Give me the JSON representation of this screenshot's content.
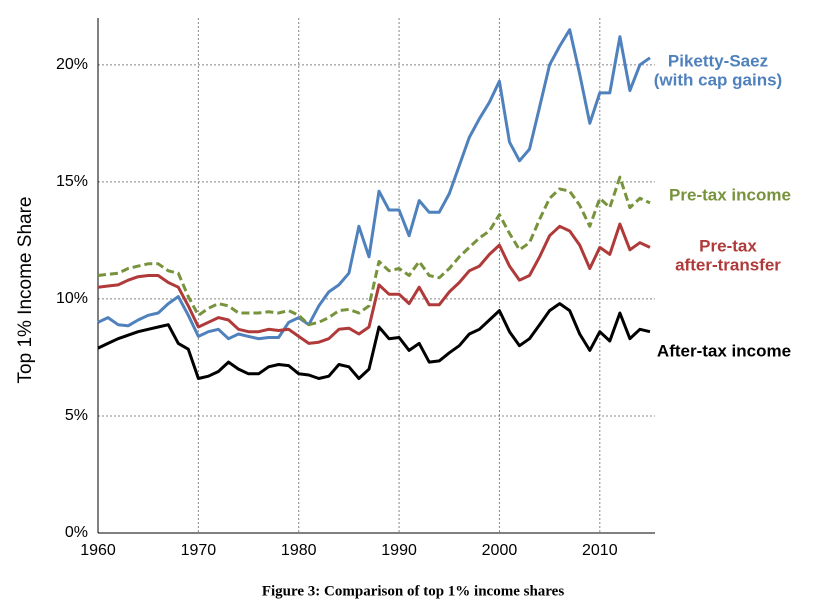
{
  "chart_data": {
    "type": "line",
    "ylabel": "Top 1% Income Share",
    "caption": "Figure 3: Comparison of top 1% income shares",
    "x": [
      1960,
      1961,
      1962,
      1963,
      1964,
      1965,
      1966,
      1967,
      1968,
      1969,
      1970,
      1971,
      1972,
      1973,
      1974,
      1975,
      1976,
      1977,
      1978,
      1979,
      1980,
      1981,
      1982,
      1983,
      1984,
      1985,
      1986,
      1987,
      1988,
      1989,
      1990,
      1991,
      1992,
      1993,
      1994,
      1995,
      1996,
      1997,
      1998,
      1999,
      2000,
      2001,
      2002,
      2003,
      2004,
      2005,
      2006,
      2007,
      2008,
      2009,
      2010,
      2011,
      2012,
      2013,
      2014,
      2015
    ],
    "xlim": [
      1960,
      2015.5
    ],
    "xticks": [
      1960,
      1970,
      1980,
      1990,
      2000,
      2010
    ],
    "ylim": [
      0,
      22
    ],
    "yticks": [
      {
        "value": 0,
        "label": "0%"
      },
      {
        "value": 5,
        "label": "5%"
      },
      {
        "value": 10,
        "label": "10%"
      },
      {
        "value": 15,
        "label": "15%"
      },
      {
        "value": 20,
        "label": "20%"
      }
    ],
    "grid": true,
    "series": [
      {
        "name": [
          "Piketty-Saez",
          "(with cap gains)"
        ],
        "color": "#4f81bd",
        "dashed": false,
        "values": [
          9.0,
          9.2,
          8.9,
          8.85,
          9.1,
          9.3,
          9.4,
          9.8,
          10.1,
          9.3,
          8.4,
          8.6,
          8.7,
          8.3,
          8.5,
          8.4,
          8.3,
          8.35,
          8.35,
          9.0,
          9.2,
          8.9,
          9.7,
          10.3,
          10.6,
          11.1,
          13.1,
          11.8,
          14.6,
          13.8,
          13.8,
          12.7,
          14.2,
          13.7,
          13.7,
          14.5,
          15.7,
          16.9,
          17.7,
          18.4,
          19.3,
          16.7,
          15.9,
          16.4,
          18.2,
          20.0,
          20.8,
          21.5,
          19.6,
          17.5,
          18.8,
          18.8,
          21.2,
          18.9,
          20.0,
          20.3
        ]
      },
      {
        "name": [
          "Pre-tax income"
        ],
        "color": "#77933c",
        "dashed": true,
        "values": [
          11.0,
          11.05,
          11.1,
          11.3,
          11.4,
          11.5,
          11.5,
          11.2,
          11.1,
          10.1,
          9.3,
          9.6,
          9.8,
          9.7,
          9.4,
          9.4,
          9.4,
          9.45,
          9.4,
          9.5,
          9.3,
          8.9,
          9.0,
          9.2,
          9.5,
          9.55,
          9.4,
          9.7,
          11.6,
          11.2,
          11.3,
          11.0,
          11.6,
          11.0,
          10.9,
          11.3,
          11.8,
          12.2,
          12.6,
          12.9,
          13.6,
          12.8,
          12.1,
          12.4,
          13.4,
          14.3,
          14.7,
          14.6,
          14.0,
          13.1,
          14.3,
          13.9,
          15.2,
          13.9,
          14.3,
          14.1
        ]
      },
      {
        "name": [
          "Pre-tax",
          "after-transfer"
        ],
        "color": "#b03a3a",
        "dashed": false,
        "values": [
          10.5,
          10.55,
          10.6,
          10.8,
          10.95,
          11.0,
          11.0,
          10.7,
          10.5,
          9.7,
          8.8,
          9.0,
          9.2,
          9.1,
          8.7,
          8.6,
          8.6,
          8.7,
          8.65,
          8.7,
          8.4,
          8.1,
          8.15,
          8.3,
          8.7,
          8.75,
          8.5,
          8.8,
          10.6,
          10.2,
          10.2,
          9.8,
          10.5,
          9.75,
          9.75,
          10.3,
          10.7,
          11.2,
          11.4,
          11.9,
          12.3,
          11.4,
          10.8,
          11.0,
          11.8,
          12.7,
          13.1,
          12.9,
          12.3,
          11.3,
          12.2,
          11.9,
          13.2,
          12.1,
          12.4,
          12.2
        ]
      },
      {
        "name": [
          "After-tax income"
        ],
        "color": "#000000",
        "dashed": false,
        "values": [
          7.9,
          8.1,
          8.3,
          8.45,
          8.6,
          8.7,
          8.8,
          8.9,
          8.1,
          7.85,
          6.6,
          6.7,
          6.9,
          7.3,
          7.0,
          6.8,
          6.8,
          7.1,
          7.2,
          7.15,
          6.8,
          6.75,
          6.6,
          6.7,
          7.2,
          7.1,
          6.6,
          7.0,
          8.8,
          8.3,
          8.35,
          7.8,
          8.1,
          7.3,
          7.35,
          7.7,
          8.0,
          8.5,
          8.7,
          9.1,
          9.5,
          8.6,
          8.0,
          8.3,
          8.9,
          9.5,
          9.8,
          9.5,
          8.5,
          7.8,
          8.6,
          8.2,
          9.4,
          8.3,
          8.7,
          8.6
        ]
      }
    ]
  }
}
